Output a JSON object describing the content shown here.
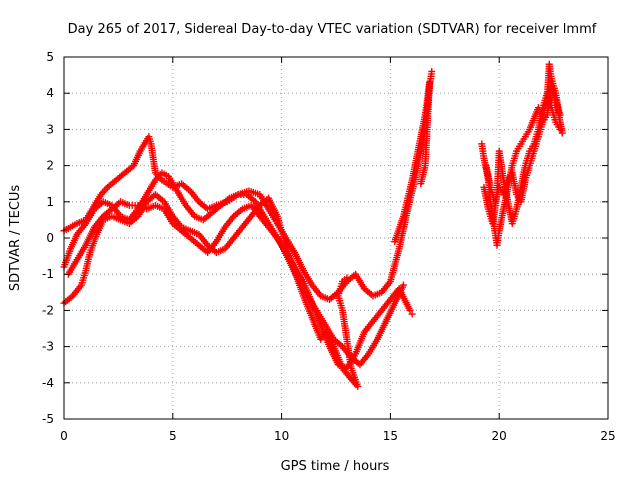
{
  "chart_data": {
    "type": "scatter",
    "title": "Day 265 of 2017, Sidereal Day-to-day VTEC variation (SDTVAR) for receiver lmmf",
    "xlabel": "GPS time / hours",
    "ylabel": "SDTVAR / TECUs",
    "xlim": [
      0,
      25
    ],
    "ylim": [
      -5,
      5
    ],
    "xticks": [
      "0",
      "5",
      "10",
      "15",
      "20",
      "25"
    ],
    "yticks": [
      "-5",
      "-4",
      "-3",
      "-2",
      "-1",
      "0",
      "1",
      "2",
      "3",
      "4",
      "5"
    ],
    "xtick_values": [
      0,
      5,
      10,
      15,
      20,
      25
    ],
    "ytick_values": [
      -5,
      -4,
      -3,
      -2,
      -1,
      0,
      1,
      2,
      3,
      4,
      5
    ],
    "grid": true,
    "marker": "+",
    "color": "#ff0000",
    "series": [
      {
        "points": [
          [
            0.0,
            0.2
          ],
          [
            0.3,
            0.3
          ],
          [
            0.6,
            0.4
          ],
          [
            1.0,
            0.5
          ],
          [
            1.3,
            0.8
          ],
          [
            1.7,
            1.2
          ],
          [
            2.0,
            1.4
          ],
          [
            2.4,
            1.6
          ],
          [
            2.8,
            1.8
          ],
          [
            3.2,
            2.0
          ],
          [
            3.5,
            2.4
          ],
          [
            3.9,
            2.8
          ],
          [
            4.0,
            2.6
          ],
          [
            4.2,
            1.8
          ],
          [
            4.5,
            1.6
          ],
          [
            5.0,
            1.4
          ],
          [
            5.4,
            1.5
          ],
          [
            5.8,
            1.3
          ],
          [
            6.2,
            1.0
          ],
          [
            6.6,
            0.8
          ],
          [
            7.0,
            0.9
          ],
          [
            7.5,
            1.0
          ],
          [
            8.0,
            1.2
          ],
          [
            8.5,
            1.3
          ],
          [
            9.0,
            1.2
          ],
          [
            9.4,
            0.8
          ],
          [
            9.8,
            0.4
          ],
          [
            10.2,
            0.0
          ],
          [
            10.6,
            -0.4
          ],
          [
            11.0,
            -0.9
          ],
          [
            11.4,
            -1.3
          ],
          [
            11.8,
            -1.6
          ],
          [
            12.2,
            -1.7
          ],
          [
            12.6,
            -1.5
          ],
          [
            13.0,
            -1.2
          ],
          [
            13.4,
            -1.0
          ],
          [
            13.8,
            -1.4
          ],
          [
            14.2,
            -1.6
          ],
          [
            14.6,
            -1.5
          ],
          [
            15.0,
            -1.2
          ],
          [
            15.4,
            -0.3
          ],
          [
            15.8,
            0.8
          ],
          [
            16.2,
            1.8
          ],
          [
            16.6,
            3.0
          ],
          [
            16.8,
            4.2
          ],
          [
            16.9,
            4.6
          ]
        ]
      },
      {
        "points": [
          [
            0.0,
            -0.8
          ],
          [
            0.3,
            -0.3
          ],
          [
            0.6,
            0.1
          ],
          [
            1.0,
            0.4
          ],
          [
            1.4,
            0.8
          ],
          [
            1.8,
            1.0
          ],
          [
            2.2,
            0.9
          ],
          [
            2.6,
            0.6
          ],
          [
            3.0,
            0.5
          ],
          [
            3.4,
            0.8
          ],
          [
            3.8,
            1.2
          ],
          [
            4.2,
            1.6
          ],
          [
            4.5,
            1.8
          ],
          [
            4.8,
            1.7
          ],
          [
            5.2,
            1.3
          ],
          [
            5.6,
            0.9
          ],
          [
            6.0,
            0.6
          ],
          [
            6.4,
            0.5
          ],
          [
            6.8,
            0.7
          ],
          [
            7.2,
            0.9
          ],
          [
            7.6,
            1.1
          ],
          [
            8.0,
            1.2
          ],
          [
            8.4,
            1.2
          ],
          [
            8.8,
            1.0
          ],
          [
            9.2,
            0.6
          ],
          [
            9.6,
            0.2
          ],
          [
            10.0,
            -0.2
          ],
          [
            10.4,
            -0.7
          ],
          [
            10.8,
            -1.2
          ],
          [
            11.2,
            -1.6
          ],
          [
            11.6,
            -2.0
          ],
          [
            12.0,
            -2.4
          ],
          [
            12.4,
            -2.8
          ],
          [
            12.8,
            -3.0
          ],
          [
            13.2,
            -3.3
          ],
          [
            13.6,
            -3.5
          ],
          [
            14.0,
            -3.2
          ],
          [
            14.4,
            -2.8
          ],
          [
            14.8,
            -2.3
          ],
          [
            15.2,
            -1.8
          ],
          [
            15.6,
            -1.3
          ]
        ]
      },
      {
        "points": [
          [
            0.0,
            -1.8
          ],
          [
            0.4,
            -1.6
          ],
          [
            0.8,
            -1.3
          ],
          [
            1.0,
            -0.9
          ],
          [
            1.2,
            -0.4
          ],
          [
            1.5,
            0.1
          ],
          [
            1.8,
            0.5
          ],
          [
            2.2,
            0.6
          ],
          [
            2.6,
            0.5
          ],
          [
            3.0,
            0.4
          ],
          [
            3.4,
            0.6
          ],
          [
            3.8,
            1.0
          ],
          [
            4.2,
            1.2
          ],
          [
            4.6,
            1.0
          ],
          [
            5.0,
            0.6
          ],
          [
            5.4,
            0.3
          ],
          [
            5.8,
            0.2
          ],
          [
            6.2,
            0.1
          ],
          [
            6.6,
            -0.2
          ],
          [
            7.0,
            -0.4
          ],
          [
            7.4,
            -0.3
          ],
          [
            7.8,
            0.0
          ],
          [
            8.2,
            0.3
          ],
          [
            8.6,
            0.6
          ],
          [
            9.0,
            0.9
          ],
          [
            9.4,
            1.1
          ],
          [
            9.8,
            0.6
          ],
          [
            10.2,
            -0.2
          ],
          [
            10.6,
            -0.9
          ],
          [
            11.0,
            -1.6
          ],
          [
            11.4,
            -2.2
          ],
          [
            11.8,
            -2.8
          ],
          [
            12.0,
            -2.6
          ],
          [
            12.4,
            -3.0
          ],
          [
            12.8,
            -3.6
          ],
          [
            13.2,
            -3.9
          ],
          [
            13.5,
            -4.1
          ],
          [
            13.2,
            -3.6
          ],
          [
            13.0,
            -2.8
          ],
          [
            12.8,
            -2.0
          ],
          [
            12.6,
            -1.6
          ],
          [
            12.8,
            -1.2
          ],
          [
            13.0,
            -1.1
          ]
        ]
      },
      {
        "points": [
          [
            0.2,
            -1.0
          ],
          [
            0.6,
            -0.6
          ],
          [
            1.0,
            -0.2
          ],
          [
            1.4,
            0.3
          ],
          [
            1.8,
            0.6
          ],
          [
            2.2,
            0.8
          ],
          [
            2.6,
            1.0
          ],
          [
            3.0,
            0.9
          ],
          [
            3.4,
            0.9
          ],
          [
            3.8,
            0.8
          ],
          [
            4.2,
            0.9
          ],
          [
            4.6,
            0.8
          ],
          [
            5.0,
            0.4
          ],
          [
            5.4,
            0.2
          ],
          [
            5.8,
            0.0
          ],
          [
            6.2,
            -0.2
          ],
          [
            6.6,
            -0.4
          ],
          [
            7.0,
            -0.1
          ],
          [
            7.4,
            0.3
          ],
          [
            7.8,
            0.6
          ],
          [
            8.2,
            0.8
          ],
          [
            8.6,
            0.9
          ],
          [
            9.0,
            0.6
          ],
          [
            9.4,
            0.3
          ],
          [
            9.8,
            0.0
          ],
          [
            10.2,
            -0.4
          ],
          [
            10.6,
            -0.8
          ],
          [
            11.0,
            -1.2
          ],
          [
            11.4,
            -1.8
          ],
          [
            11.8,
            -2.4
          ],
          [
            12.2,
            -3.0
          ],
          [
            12.6,
            -3.5
          ],
          [
            13.0,
            -3.6
          ],
          [
            13.4,
            -3.2
          ],
          [
            13.8,
            -2.6
          ],
          [
            14.2,
            -2.3
          ],
          [
            14.6,
            -2.0
          ],
          [
            15.0,
            -1.7
          ],
          [
            15.4,
            -1.4
          ],
          [
            15.9,
            -2.0
          ],
          [
            16.0,
            -2.1
          ]
        ]
      },
      {
        "points": [
          [
            15.2,
            -0.1
          ],
          [
            15.6,
            0.6
          ],
          [
            16.0,
            1.6
          ],
          [
            16.2,
            2.2
          ],
          [
            16.4,
            2.8
          ],
          [
            16.6,
            3.4
          ],
          [
            16.7,
            3.8
          ],
          [
            16.8,
            4.3
          ],
          [
            16.6,
            2.0
          ],
          [
            16.4,
            1.5
          ]
        ]
      },
      {
        "points": [
          [
            19.2,
            2.6
          ],
          [
            19.3,
            2.2
          ],
          [
            19.5,
            1.6
          ],
          [
            19.6,
            1.0
          ],
          [
            19.8,
            0.2
          ],
          [
            19.9,
            -0.2
          ],
          [
            20.0,
            0.2
          ],
          [
            20.2,
            0.8
          ],
          [
            20.4,
            1.4
          ],
          [
            20.6,
            2.0
          ],
          [
            20.8,
            2.4
          ],
          [
            21.0,
            2.6
          ],
          [
            21.2,
            2.8
          ],
          [
            21.4,
            3.0
          ],
          [
            21.6,
            3.3
          ],
          [
            21.8,
            3.6
          ],
          [
            22.0,
            3.4
          ],
          [
            22.2,
            3.8
          ],
          [
            22.3,
            4.8
          ],
          [
            22.4,
            4.4
          ],
          [
            22.6,
            4.0
          ],
          [
            22.8,
            3.2
          ],
          [
            22.9,
            2.9
          ]
        ]
      },
      {
        "points": [
          [
            19.3,
            1.4
          ],
          [
            19.5,
            0.8
          ],
          [
            19.7,
            0.4
          ],
          [
            19.9,
            1.2
          ],
          [
            20.0,
            2.4
          ],
          [
            20.2,
            1.6
          ],
          [
            20.4,
            1.0
          ],
          [
            20.6,
            0.4
          ],
          [
            20.8,
            0.8
          ],
          [
            21.0,
            1.4
          ],
          [
            21.2,
            2.0
          ],
          [
            21.4,
            2.4
          ],
          [
            21.6,
            2.6
          ],
          [
            21.8,
            3.0
          ],
          [
            22.0,
            3.6
          ],
          [
            22.2,
            4.0
          ],
          [
            22.4,
            3.6
          ],
          [
            22.6,
            3.2
          ],
          [
            22.8,
            3.0
          ]
        ]
      },
      {
        "points": [
          [
            19.4,
            2.0
          ],
          [
            19.6,
            1.4
          ],
          [
            19.8,
            1.0
          ],
          [
            20.0,
            1.4
          ],
          [
            20.2,
            1.2
          ],
          [
            20.4,
            1.6
          ],
          [
            20.6,
            1.8
          ],
          [
            20.8,
            1.2
          ],
          [
            21.0,
            1.0
          ],
          [
            21.2,
            1.6
          ],
          [
            21.4,
            2.0
          ],
          [
            21.6,
            2.4
          ],
          [
            21.8,
            2.8
          ],
          [
            22.0,
            3.2
          ],
          [
            22.2,
            3.4
          ],
          [
            22.4,
            4.2
          ],
          [
            22.6,
            3.8
          ],
          [
            22.8,
            3.4
          ]
        ]
      }
    ]
  }
}
